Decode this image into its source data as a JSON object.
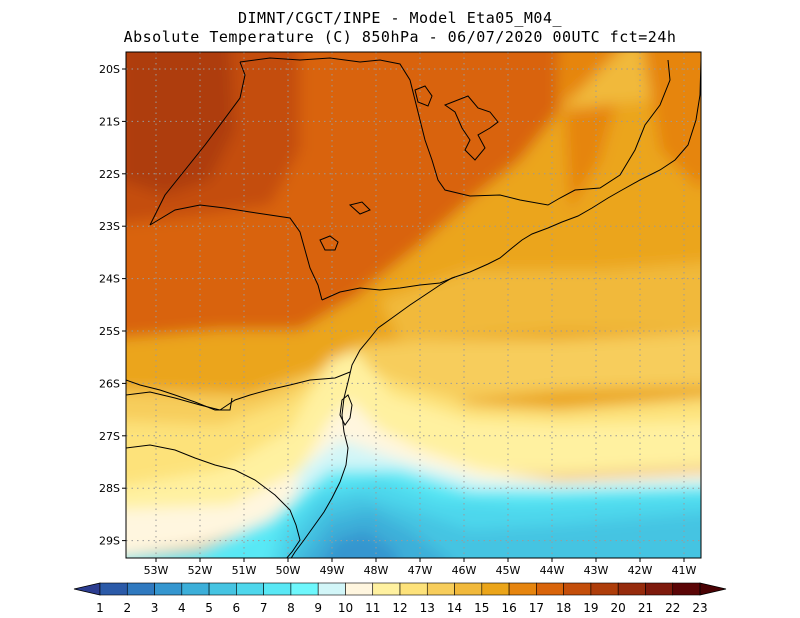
{
  "title": {
    "line1": "DIMNT/CGCT/INPE -  Model Eta05_M04_",
    "line2": "Absolute Temperature (C) 850hPa -  06/07/2020 00UTC fct=24h"
  },
  "axes": {
    "lat_labels": [
      "20S",
      "21S",
      "22S",
      "23S",
      "24S",
      "25S",
      "26S",
      "27S",
      "28S",
      "29S"
    ],
    "lon_labels": [
      "53W",
      "52W",
      "51W",
      "50W",
      "49W",
      "48W",
      "47W",
      "46W",
      "45W",
      "44W",
      "43W",
      "42W",
      "41W"
    ]
  },
  "colorbar": {
    "labels": [
      "1",
      "2",
      "3",
      "4",
      "5",
      "6",
      "7",
      "8",
      "9",
      "10",
      "11",
      "12",
      "13",
      "14",
      "15",
      "16",
      "17",
      "18",
      "19",
      "20",
      "21",
      "22",
      "23"
    ],
    "colors": [
      "#2c3d90",
      "#2b5aa8",
      "#2f79bf",
      "#3596cf",
      "#3cafd9",
      "#45c4e2",
      "#4ed7ec",
      "#59e8f5",
      "#6ef7fc",
      "#d2f6f8",
      "#fff6df",
      "#fff1a0",
      "#fde27a",
      "#f7cd5b",
      "#f1b93b",
      "#eba51a",
      "#e6850f",
      "#d9640a",
      "#c44e0a",
      "#ae3d0a",
      "#962b0c",
      "#7e1a0c",
      "#5b0506",
      "#4a0204"
    ]
  },
  "legend_colors": {
    "land_border": "#000000",
    "grid_dots": "#9a9a9a"
  }
}
